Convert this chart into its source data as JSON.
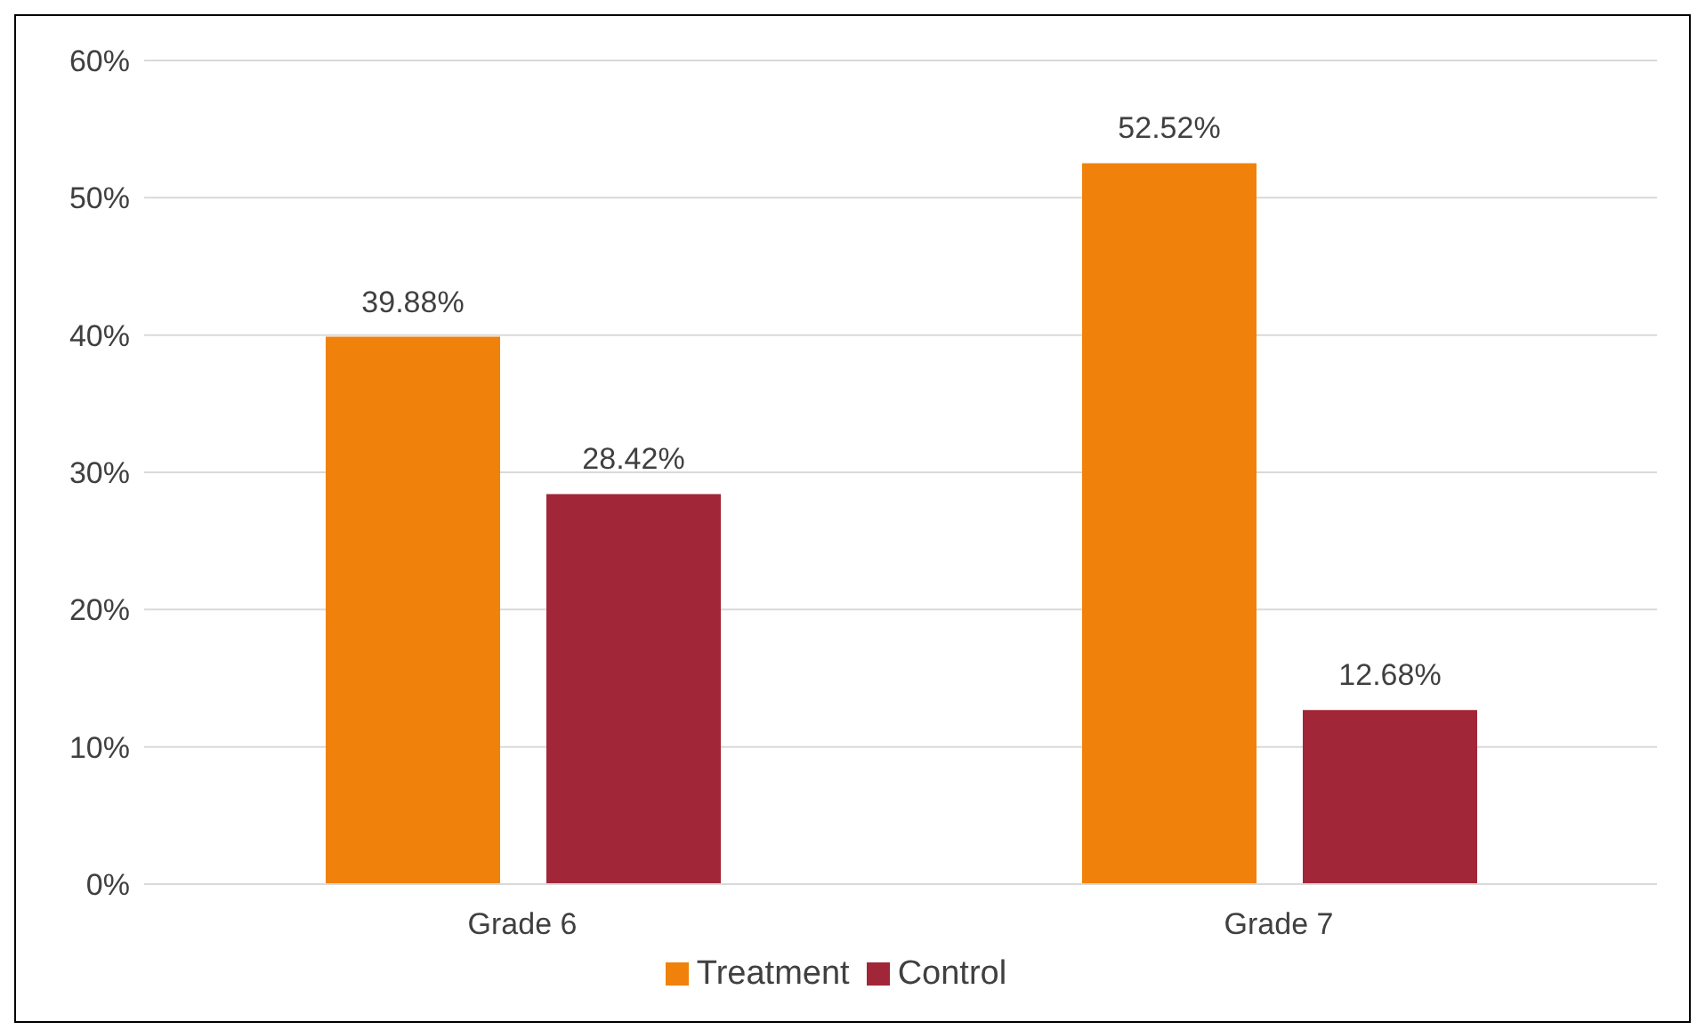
{
  "chart_data": {
    "type": "bar",
    "categories": [
      "Grade 6",
      "Grade 7"
    ],
    "series": [
      {
        "name": "Treatment",
        "color": "#f0820c",
        "values": [
          39.88,
          52.52
        ],
        "value_labels": [
          "39.88%",
          "52.52%"
        ]
      },
      {
        "name": "Control",
        "color": "#a12738",
        "values": [
          28.42,
          12.68
        ],
        "value_labels": [
          "28.42%",
          "12.68%"
        ]
      }
    ],
    "ylim": [
      0,
      60
    ],
    "yticks": [
      {
        "value": 0,
        "label": "0%"
      },
      {
        "value": 10,
        "label": "10%"
      },
      {
        "value": 20,
        "label": "20%"
      },
      {
        "value": 30,
        "label": "30%"
      },
      {
        "value": 40,
        "label": "40%"
      },
      {
        "value": 50,
        "label": "50%"
      },
      {
        "value": 60,
        "label": "60%"
      }
    ],
    "grid": "y",
    "legend": "bottom"
  }
}
